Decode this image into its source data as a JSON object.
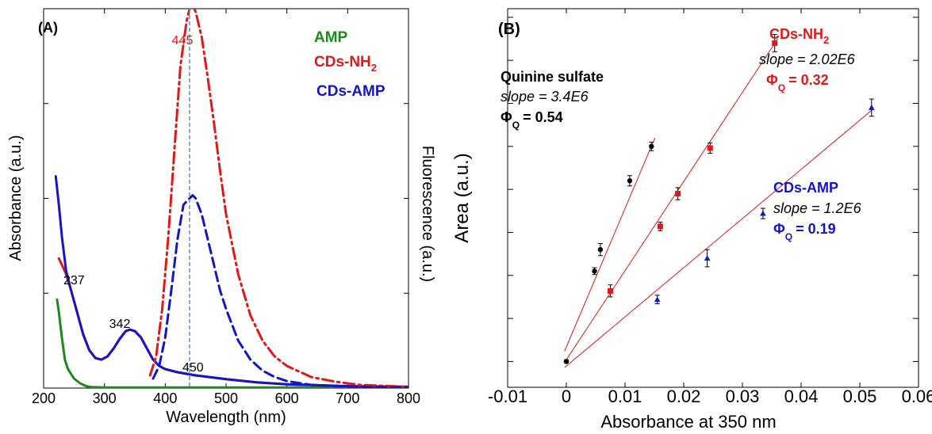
{
  "colors": {
    "amp": "#1a8a1a",
    "cds_nh2": "#e01818",
    "cds_amp": "#1414c8",
    "quinine": "#000000",
    "guide": "#5a8fd0",
    "fit": "#e01818"
  },
  "chart_data": [
    {
      "panel": "A",
      "type": "line",
      "panel_label": "(A)",
      "xlabel": "Wavelength (nm)",
      "ylabel": "Absorbance (a.u.)",
      "y2label": "Fluorescence (a.u.)",
      "xlim": [
        200,
        800
      ],
      "ylim": [
        0,
        1.2
      ],
      "x_ticks": [
        200,
        300,
        400,
        500,
        600,
        700,
        800
      ],
      "legend": [
        "AMP",
        "CDs-NH2",
        "CDs-AMP"
      ],
      "annotations": {
        "a237": "237",
        "a342": "342",
        "a445": "445",
        "a450": "450"
      },
      "series": [
        {
          "name": "AMP",
          "kind": "absorbance",
          "x": [
            222,
            225,
            230,
            235,
            240,
            250,
            260,
            270,
            280,
            300,
            350,
            400,
            500,
            600,
            700,
            800
          ],
          "y": [
            0.28,
            0.24,
            0.16,
            0.09,
            0.06,
            0.03,
            0.015,
            0.006,
            0.003,
            0.002,
            0.002,
            0.002,
            0.002,
            0.002,
            0.002,
            0.002
          ]
        },
        {
          "name": "CDs-NH2",
          "kind": "absorbance",
          "x": [
            225,
            230,
            237,
            245,
            255,
            265,
            275,
            285,
            295,
            305,
            315,
            325,
            335,
            342,
            350,
            360,
            370,
            380,
            390,
            400,
            420,
            450,
            500,
            550,
            600,
            700,
            800
          ],
          "y": [
            0.41,
            0.39,
            0.36,
            0.31,
            0.24,
            0.17,
            0.12,
            0.095,
            0.09,
            0.1,
            0.125,
            0.155,
            0.18,
            0.185,
            0.18,
            0.16,
            0.125,
            0.09,
            0.07,
            0.06,
            0.05,
            0.04,
            0.028,
            0.018,
            0.012,
            0.006,
            0.004
          ]
        },
        {
          "name": "CDs-AMP",
          "kind": "absorbance",
          "x": [
            220,
            225,
            230,
            237,
            245,
            255,
            265,
            275,
            285,
            295,
            305,
            315,
            325,
            335,
            342,
            350,
            360,
            370,
            380,
            390,
            400,
            420,
            450,
            500,
            550,
            600,
            700,
            800
          ],
          "y": [
            0.67,
            0.58,
            0.48,
            0.37,
            0.31,
            0.24,
            0.17,
            0.12,
            0.095,
            0.09,
            0.1,
            0.125,
            0.155,
            0.18,
            0.185,
            0.18,
            0.16,
            0.125,
            0.09,
            0.07,
            0.06,
            0.05,
            0.04,
            0.028,
            0.018,
            0.012,
            0.006,
            0.004
          ]
        },
        {
          "name": "CDs-NH2",
          "kind": "fluorescence",
          "x": [
            375,
            385,
            395,
            405,
            415,
            425,
            435,
            440,
            445,
            450,
            460,
            470,
            480,
            490,
            500,
            520,
            540,
            560,
            580,
            600,
            640,
            680,
            720,
            800
          ],
          "y": [
            0.04,
            0.1,
            0.25,
            0.48,
            0.75,
            1.02,
            1.16,
            1.2,
            1.21,
            1.19,
            1.11,
            0.98,
            0.84,
            0.69,
            0.55,
            0.36,
            0.23,
            0.15,
            0.1,
            0.07,
            0.035,
            0.02,
            0.01,
            0.004
          ]
        },
        {
          "name": "CDs-AMP",
          "kind": "fluorescence",
          "x": [
            380,
            390,
            400,
            410,
            420,
            430,
            440,
            445,
            450,
            460,
            470,
            480,
            490,
            500,
            520,
            540,
            560,
            580,
            600,
            640,
            700,
            800
          ],
          "y": [
            0.03,
            0.07,
            0.16,
            0.31,
            0.47,
            0.58,
            0.6,
            0.61,
            0.6,
            0.55,
            0.47,
            0.39,
            0.31,
            0.25,
            0.15,
            0.09,
            0.055,
            0.035,
            0.022,
            0.01,
            0.004,
            0.002
          ]
        }
      ]
    },
    {
      "panel": "B",
      "type": "scatter",
      "panel_label": "(B)",
      "xlabel": "Absorbance at 350 nm",
      "ylabel": "Area (a.u.)",
      "xlim": [
        -0.01,
        0.06
      ],
      "ylim": [
        -0.3,
        4.1
      ],
      "x_ticks": [
        -0.01,
        0,
        0.01,
        0.02,
        0.03,
        0.04,
        0.05,
        0.06
      ],
      "x_tick_labels": [
        "-0.01",
        "0",
        "0.01",
        "0.02",
        "0.03",
        "0.04",
        "0.05",
        "0.06"
      ],
      "series": [
        {
          "name": "Quinine sulfate",
          "marker": "circle",
          "x": [
            0,
            0.0048,
            0.0058,
            0.0108,
            0.0145
          ],
          "y": [
            0,
            1.05,
            1.3,
            2.1,
            2.5
          ],
          "err": [
            0,
            0.04,
            0.07,
            0.06,
            0.05
          ],
          "fit": {
            "x": [
              -0.0003,
              0.0151
            ],
            "y": [
              0.12,
              2.6
            ]
          },
          "label": "Quinine sulfate",
          "slope_text": "slope = 3.4E6",
          "phi_main": "Φ",
          "phi_sub": "Q",
          "phi_value": "= 0.54"
        },
        {
          "name": "CDs-NH2",
          "marker": "square",
          "x": [
            0,
            0.0075,
            0.016,
            0.019,
            0.0245,
            0.0355
          ],
          "y": [
            0,
            0.82,
            1.57,
            1.95,
            2.48,
            3.7
          ],
          "err": [
            0,
            0.07,
            0.05,
            0.07,
            0.06,
            0.1
          ],
          "fit": {
            "x": [
              0,
              0.036
            ],
            "y": [
              0.02,
              3.75
            ]
          },
          "label": "CDs-NH",
          "label_sub": "2",
          "slope_text": "slope = 2.02E6",
          "phi_main": "Φ",
          "phi_sub": "Q",
          "phi_value": "= 0.32"
        },
        {
          "name": "CDs-AMP",
          "marker": "triangle",
          "x": [
            0,
            0.0155,
            0.024,
            0.0335,
            0.052
          ],
          "y": [
            0,
            0.72,
            1.2,
            1.72,
            2.95
          ],
          "err": [
            0,
            0.05,
            0.1,
            0.06,
            0.1
          ],
          "fit": {
            "x": [
              -0.0003,
              0.0522
            ],
            "y": [
              -0.07,
              2.93
            ]
          },
          "label": "CDs-AMP",
          "slope_text": "slope = 1.2E6",
          "phi_main": "Φ",
          "phi_sub": "Q",
          "phi_value": "= 0.19"
        }
      ]
    }
  ]
}
